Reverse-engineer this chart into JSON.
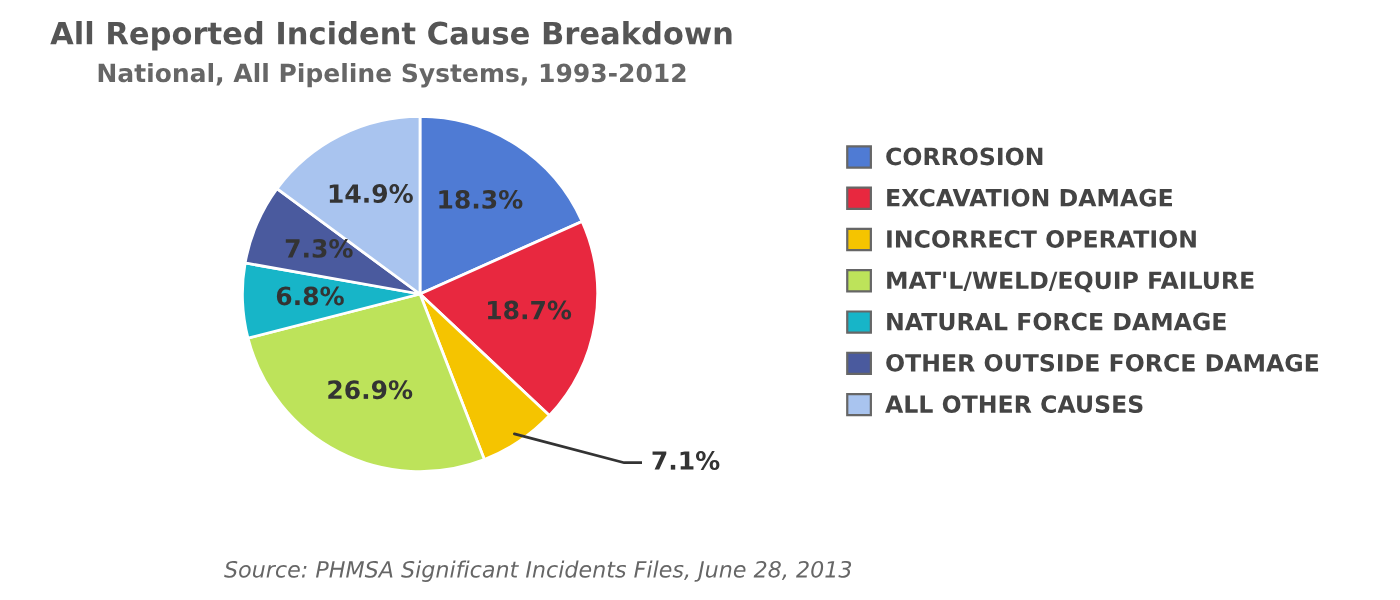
{
  "chart_data": {
    "type": "pie",
    "title": "All Reported Incident Cause Breakdown",
    "subtitle": "National, All Pipeline Systems, 1993-2012",
    "categories": [
      "CORROSION",
      "EXCAVATION DAMAGE",
      "INCORRECT OPERATION",
      "MAT'L/WELD/EQUIP FAILURE",
      "NATURAL FORCE DAMAGE",
      "OTHER OUTSIDE FORCE DAMAGE",
      "ALL OTHER CAUSES"
    ],
    "values": [
      18.3,
      18.7,
      7.1,
      26.9,
      6.8,
      7.3,
      14.9
    ],
    "colors": [
      "#4f7bd4",
      "#e8283f",
      "#f5c400",
      "#bde35a",
      "#17b5c8",
      "#4a5a9e",
      "#a9c4ef"
    ],
    "value_labels": [
      "18.3%",
      "18.7%",
      "7.1%",
      "26.9%",
      "6.8%",
      "7.3%",
      "14.9%"
    ],
    "legend": "right",
    "annotations": [
      "Source: PHMSA Significant Incidents Files, June 28, 2013"
    ]
  }
}
